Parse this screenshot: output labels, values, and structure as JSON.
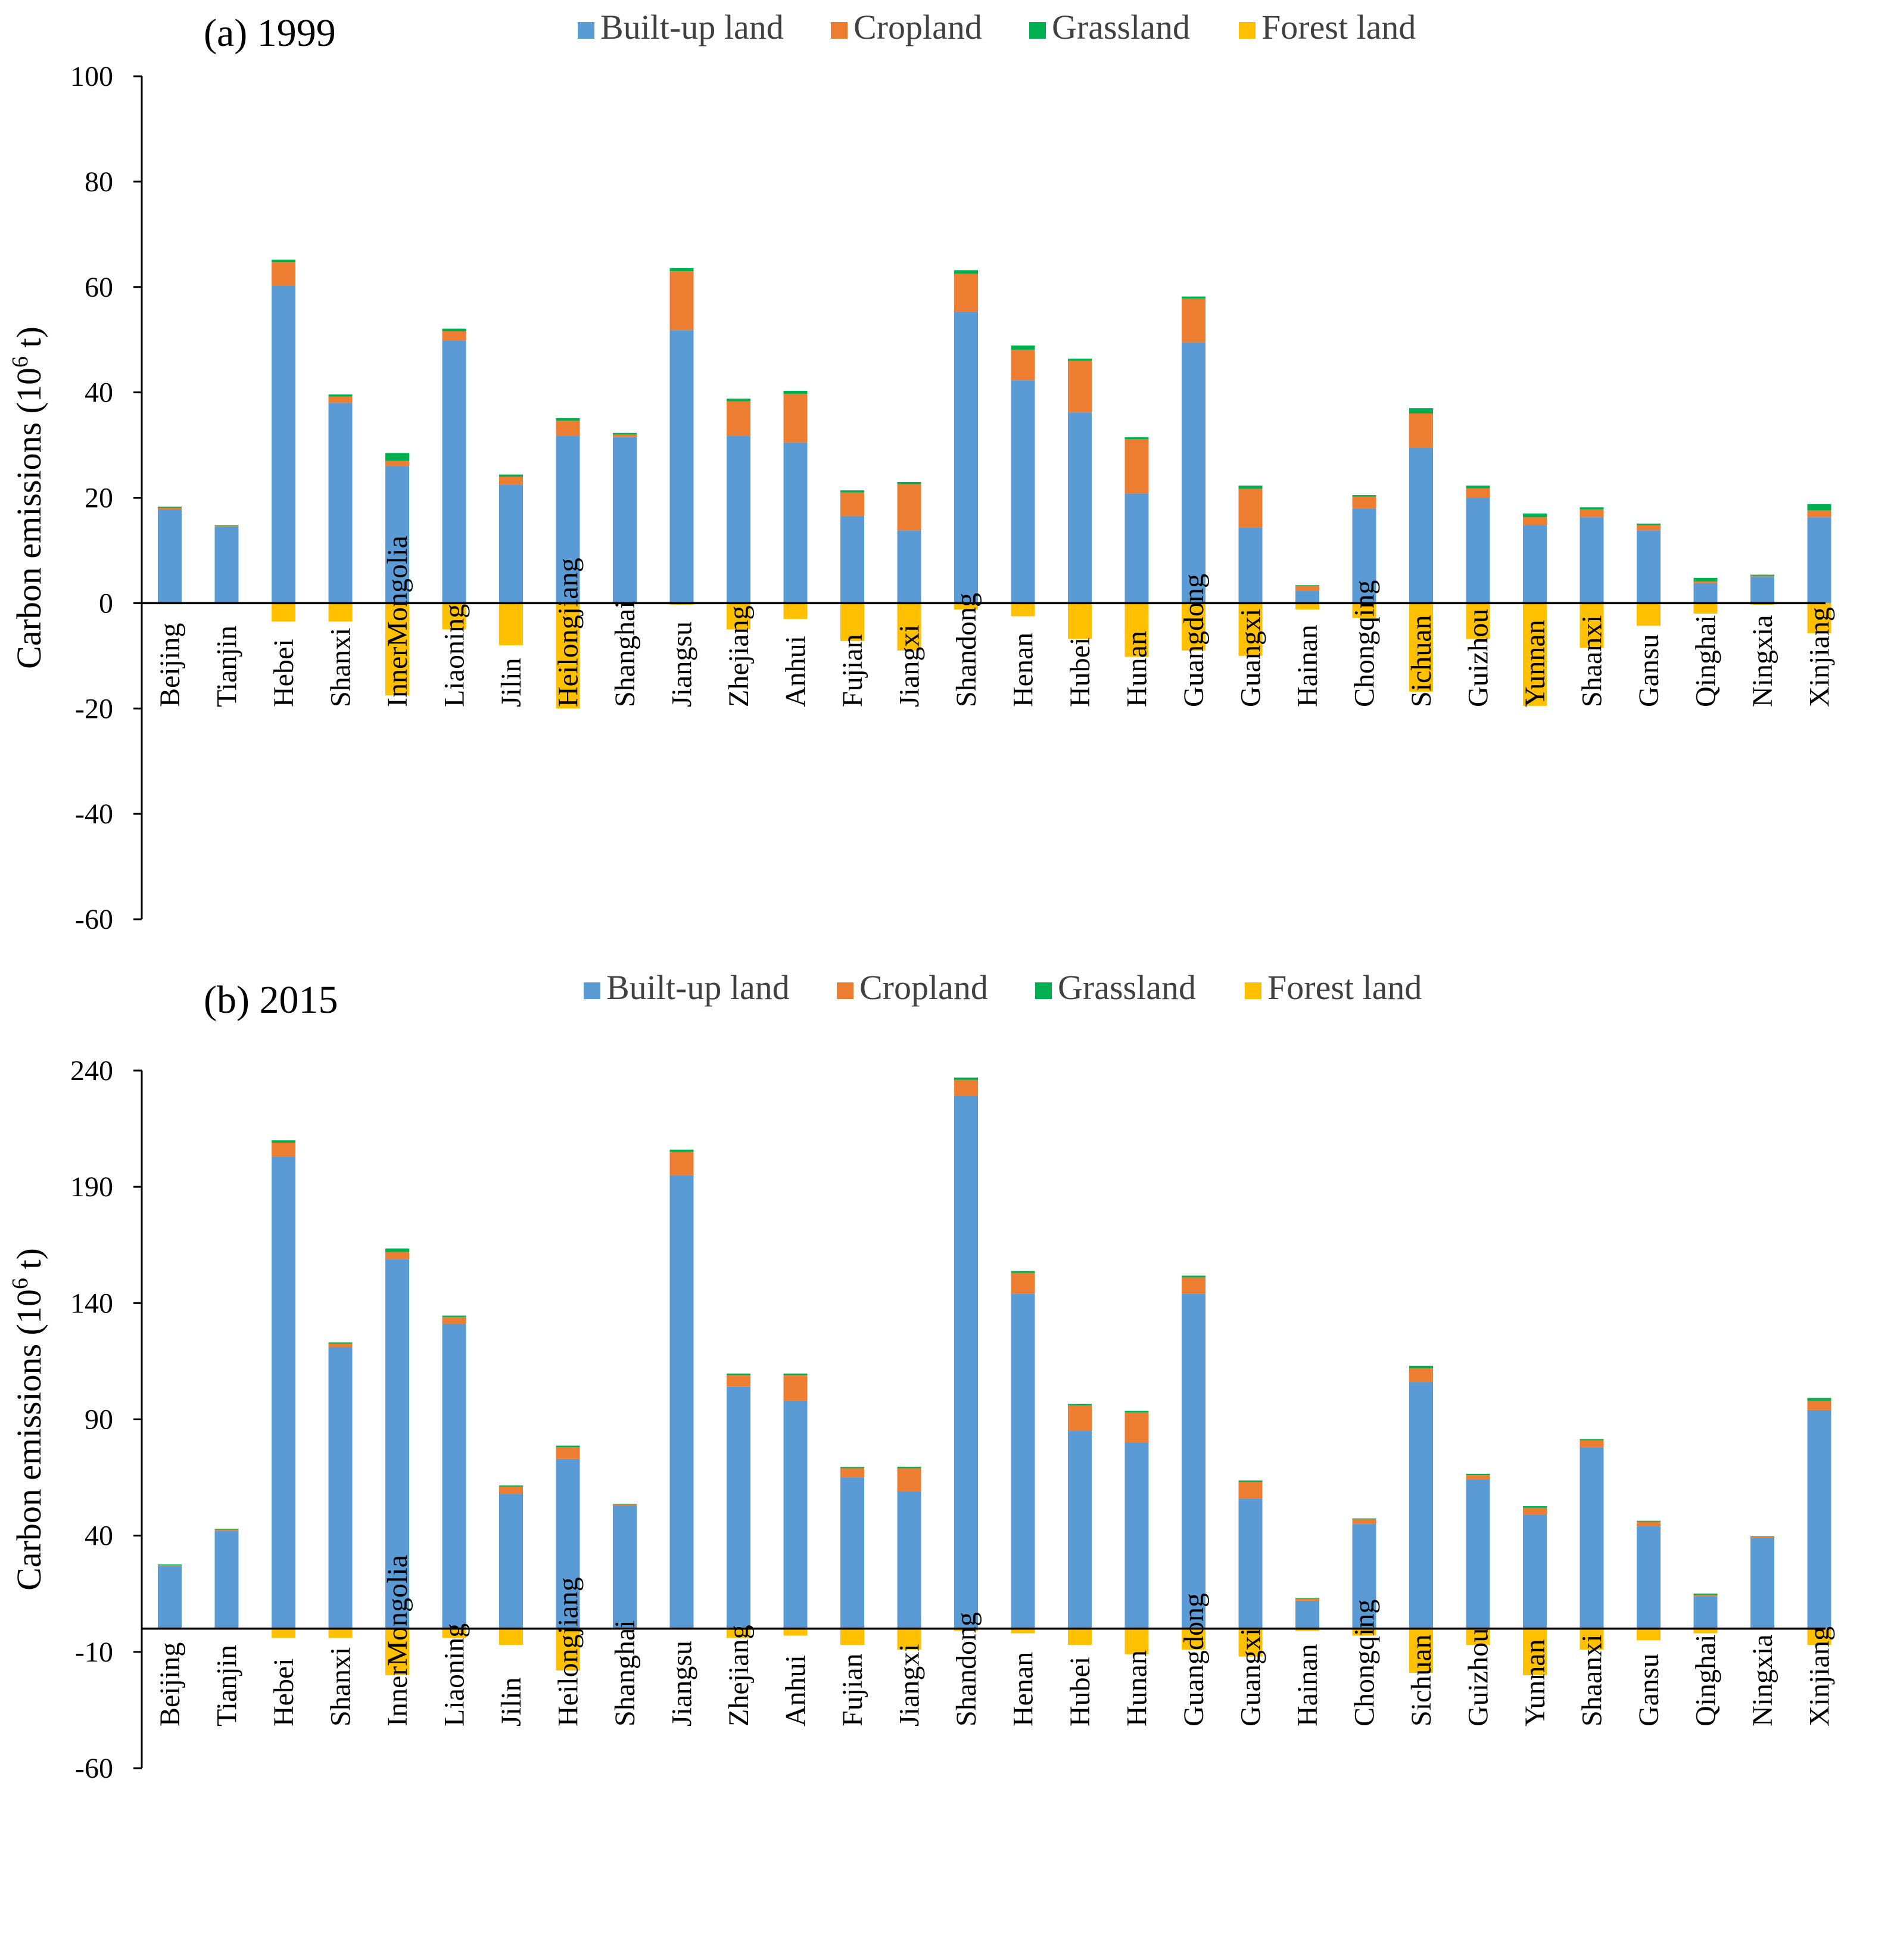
{
  "chart_data": [
    {
      "type": "bar",
      "stacked": true,
      "title": "(a) 1999",
      "ylabel": "Carbon emissions (10",
      "ylabel_sup": "6",
      "ylabel_end": " t)",
      "ylim": [
        -60,
        100
      ],
      "yticks": [
        100,
        80,
        60,
        40,
        20,
        0,
        -20,
        -40,
        -60
      ],
      "categories": [
        "Beijing",
        "Tianjin",
        "Hebei",
        "Shanxi",
        "InnerMongolia",
        "Liaoning",
        "Jilin",
        "Heilongjiang",
        "Shanghai",
        "Jiangsu",
        "Zhejiang",
        "Anhui",
        "Fujian",
        "Jiangxi",
        "Shandong",
        "Henan",
        "Hubei",
        "Hunan",
        "Guangdong",
        "Guangxi",
        "Hainan",
        "Chongqing",
        "Sichuan",
        "Guizhou",
        "Yunnan",
        "Shaanxi",
        "Gansu",
        "Qinghai",
        "Ningxia",
        "Xinjiang"
      ],
      "series": [
        {
          "name": "Built-up land",
          "color": "#5B9BD5",
          "values": [
            17.8,
            14.5,
            60.2,
            38,
            26,
            49.8,
            22.5,
            31.8,
            31.5,
            51.8,
            31.8,
            30.5,
            16.5,
            13.8,
            55.3,
            42.3,
            36.2,
            20.8,
            49.5,
            14.3,
            2.3,
            18,
            29.5,
            20,
            14.8,
            16.3,
            13.8,
            3.8,
            5,
            16.3
          ]
        },
        {
          "name": "Cropland",
          "color": "#ED7D31",
          "values": [
            0.3,
            0.2,
            4.5,
            1.2,
            1,
            1.8,
            1.5,
            2.8,
            0.5,
            11.2,
            6.5,
            9.2,
            4.5,
            8.8,
            7.2,
            5.8,
            9.8,
            10.3,
            8.3,
            7.4,
            0.9,
            2.2,
            6.5,
            1.8,
            1.5,
            1.5,
            1,
            0.3,
            0.2,
            1.3
          ]
        },
        {
          "name": "Grassland",
          "color": "#00B050",
          "values": [
            0.2,
            0.1,
            0.5,
            0.4,
            1.5,
            0.5,
            0.4,
            0.5,
            0.3,
            0.6,
            0.5,
            0.6,
            0.4,
            0.4,
            0.7,
            0.8,
            0.4,
            0.4,
            0.4,
            0.6,
            0.2,
            0.3,
            1,
            0.5,
            0.7,
            0.4,
            0.3,
            0.7,
            0.2,
            1.2
          ]
        },
        {
          "name": "Forest land",
          "color": "#FFC000",
          "values": [
            -0.2,
            -0.1,
            -3.5,
            -3.5,
            -17.5,
            -5,
            -8,
            -20,
            -0.2,
            -0.3,
            -5,
            -3,
            -7.2,
            -9,
            -1.2,
            -2.5,
            -6.8,
            -10.2,
            -9,
            -10,
            -1.2,
            -2.8,
            -16.8,
            -6.8,
            -19.5,
            -8.5,
            -4.3,
            -2,
            -0.3,
            -5.7
          ]
        }
      ]
    },
    {
      "type": "bar",
      "stacked": true,
      "title": "(b) 2015",
      "ylabel": "Carbon emissions (10",
      "ylabel_sup": "6",
      "ylabel_end": " t)",
      "ylim": [
        -60,
        240
      ],
      "yticks": [
        240,
        190,
        140,
        90,
        40,
        -10,
        -60
      ],
      "categories": [
        "Beijing",
        "Tianjin",
        "Hebei",
        "Shanxi",
        "InnerMongolia",
        "Liaoning",
        "Jilin",
        "Heilongjiang",
        "Shanghai",
        "Jiangsu",
        "Zhejiang",
        "Anhui",
        "Fujian",
        "Jiangxi",
        "Shandong",
        "Henan",
        "Hubei",
        "Hunan",
        "Guangdong",
        "Guangxi",
        "Hainan",
        "Chongqing",
        "Sichuan",
        "Guizhou",
        "Yunnan",
        "Shaanxi",
        "Gansu",
        "Qinghai",
        "Ningxia",
        "Xinjiang"
      ],
      "series": [
        {
          "name": "Built-up land",
          "color": "#5B9BD5",
          "values": [
            27,
            42,
            203,
            121,
            159,
            131,
            58,
            73,
            53,
            195,
            104,
            98,
            65,
            59,
            229,
            144,
            85,
            80,
            144,
            56,
            12,
            45,
            106,
            64,
            49,
            78,
            44,
            14,
            39,
            94
          ]
        },
        {
          "name": "Cropland",
          "color": "#ED7D31",
          "values": [
            0.3,
            0.5,
            6,
            1.5,
            3,
            3,
            3,
            5,
            0.3,
            10,
            5,
            11,
            4,
            10,
            7,
            9,
            11,
            13,
            7,
            7,
            1,
            2,
            6,
            2,
            3,
            3,
            2,
            0.5,
            0.4,
            4
          ]
        },
        {
          "name": "Grassland",
          "color": "#00B050",
          "values": [
            0.3,
            0.4,
            1,
            0.6,
            1.5,
            0.6,
            0.6,
            0.7,
            0.3,
            1,
            0.7,
            0.7,
            0.5,
            0.6,
            1,
            0.8,
            0.6,
            0.7,
            0.8,
            0.7,
            0.2,
            0.4,
            1,
            0.6,
            0.7,
            0.5,
            0.4,
            0.6,
            0.3,
            1.2
          ]
        },
        {
          "name": "Forest land",
          "color": "#FFC000",
          "values": [
            -0.2,
            -0.1,
            -4,
            -4,
            -20,
            -4,
            -7,
            -18,
            -0.2,
            -0.3,
            -4,
            -3,
            -7,
            -9,
            -1,
            -2,
            -7,
            -11,
            -9,
            -12,
            -1,
            -3,
            -19,
            -7,
            -20,
            -9,
            -5,
            -2,
            -0.3,
            -7
          ]
        }
      ]
    }
  ]
}
